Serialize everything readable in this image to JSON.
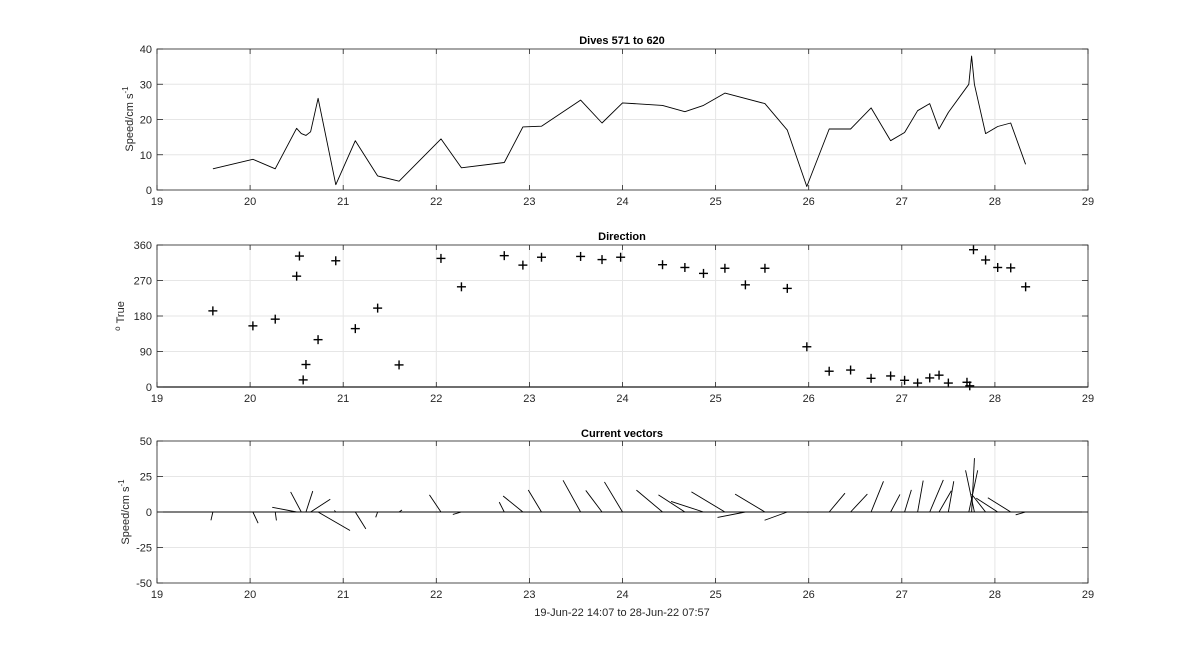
{
  "chart_data": [
    {
      "type": "line",
      "title": "Dives 571 to 620",
      "ylabel": "Speed/cm s",
      "ylabel_sup": "-1",
      "xlim": [
        19,
        29
      ],
      "ylim": [
        0,
        40
      ],
      "xticks": [
        19,
        20,
        21,
        22,
        23,
        24,
        25,
        26,
        27,
        28,
        29
      ],
      "yticks": [
        0,
        10,
        20,
        30,
        40
      ],
      "grid": true,
      "series": [
        {
          "x": [
            19.6,
            20.03,
            20.27,
            20.5,
            20.55,
            20.6,
            20.65,
            20.73,
            20.92,
            21.13,
            21.37,
            21.6,
            22.05,
            22.27,
            22.73,
            22.93,
            23.13,
            23.55,
            23.78,
            24.0,
            24.43,
            24.67,
            24.87,
            25.1,
            25.53,
            25.77,
            25.98,
            26.22,
            26.45,
            26.67,
            26.88,
            27.03,
            27.17,
            27.3,
            27.4,
            27.5,
            27.72,
            27.75,
            27.78,
            27.9,
            28.03,
            28.17,
            28.33
          ],
          "y": [
            6,
            8.7,
            6,
            17.5,
            16,
            15.5,
            16.5,
            26,
            1.5,
            14,
            4,
            2.5,
            14.5,
            6.3,
            7.8,
            17.9,
            18.1,
            25.5,
            19,
            24.7,
            24,
            22.2,
            24,
            27.5,
            24.5,
            17,
            1,
            17.3,
            17.3,
            23.3,
            14,
            16.3,
            22.5,
            24.5,
            17.3,
            22,
            30,
            38,
            30,
            16,
            18,
            19,
            7.3
          ]
        }
      ]
    },
    {
      "type": "scatter",
      "title": "Direction",
      "ylabel": "True",
      "ylabel_prefix": "o",
      "xlim": [
        19,
        29
      ],
      "ylim": [
        0,
        360
      ],
      "xticks": [
        19,
        20,
        21,
        22,
        23,
        24,
        25,
        26,
        27,
        28,
        29
      ],
      "yticks": [
        0,
        90,
        180,
        270,
        360
      ],
      "grid": true,
      "marker": "+",
      "series": [
        {
          "x": [
            19.6,
            20.03,
            20.27,
            20.5,
            20.53,
            20.57,
            20.6,
            20.73,
            20.92,
            21.13,
            21.37,
            21.6,
            22.05,
            22.27,
            22.73,
            22.93,
            23.13,
            23.55,
            23.78,
            23.98,
            24.43,
            24.67,
            24.87,
            25.1,
            25.32,
            25.53,
            25.77,
            25.98,
            26.22,
            26.45,
            26.67,
            26.88,
            27.03,
            27.17,
            27.3,
            27.4,
            27.5,
            27.7,
            27.73,
            27.77,
            27.9,
            28.03,
            28.17,
            28.33
          ],
          "y": [
            193,
            155,
            172,
            281,
            332,
            18,
            57,
            120,
            320,
            148,
            200,
            56,
            326,
            254,
            333,
            309,
            329,
            331,
            323,
            329,
            310,
            303,
            288,
            301,
            259,
            301,
            250,
            102,
            40,
            43,
            22,
            28,
            17,
            10,
            23,
            30,
            10,
            12,
            3,
            348,
            322,
            303,
            302,
            254
          ]
        }
      ]
    },
    {
      "type": "line",
      "subtype": "vector-stick",
      "title": "Current vectors",
      "ylabel": "Speed/cm s",
      "ylabel_sup": "-1",
      "xlabel": "19-Jun-22 14:07 to 28-Jun-22 07:57",
      "xlim": [
        19,
        29
      ],
      "ylim": [
        -50,
        50
      ],
      "xticks": [
        19,
        20,
        21,
        22,
        23,
        24,
        25,
        26,
        27,
        28,
        29
      ],
      "yticks": [
        -50,
        -25,
        0,
        25,
        50
      ],
      "grid": true,
      "vectors": {
        "x": [
          19.6,
          20.03,
          20.27,
          20.5,
          20.55,
          20.6,
          20.65,
          20.73,
          20.92,
          21.13,
          21.37,
          21.6,
          22.05,
          22.27,
          22.73,
          22.93,
          23.13,
          23.55,
          23.78,
          24.0,
          24.43,
          24.67,
          24.87,
          25.1,
          25.32,
          25.53,
          25.77,
          25.98,
          26.22,
          26.45,
          26.67,
          26.88,
          27.03,
          27.17,
          27.3,
          27.4,
          27.5,
          27.72,
          27.75,
          27.78,
          27.9,
          28.03,
          28.17,
          28.33
        ],
        "speed": [
          6,
          8.7,
          6,
          17.5,
          16,
          15.5,
          16.5,
          26,
          1.5,
          14,
          4,
          2.5,
          14.5,
          6.3,
          7.8,
          17.9,
          18.1,
          25.5,
          19,
          24.7,
          24,
          22.2,
          24,
          27.5,
          20,
          24.5,
          17,
          1,
          17.3,
          17.3,
          23.3,
          14,
          16.3,
          22.5,
          24.5,
          17.3,
          22,
          30,
          38,
          30,
          16,
          18,
          19,
          7.3
        ],
        "direction": [
          193,
          155,
          172,
          281,
          332,
          18,
          57,
          120,
          320,
          148,
          200,
          56,
          326,
          254,
          333,
          309,
          329,
          331,
          323,
          329,
          310,
          303,
          288,
          301,
          259,
          301,
          250,
          102,
          40,
          43,
          22,
          28,
          17,
          10,
          23,
          30,
          10,
          12,
          3,
          348,
          322,
          303,
          302,
          254
        ]
      }
    }
  ]
}
